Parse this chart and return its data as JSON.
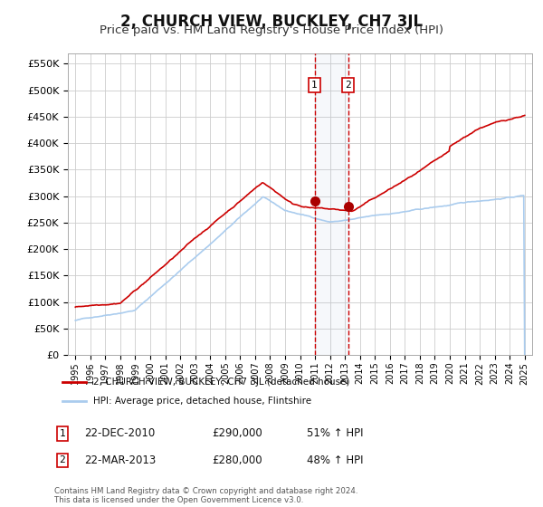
{
  "title": "2, CHURCH VIEW, BUCKLEY, CH7 3JL",
  "subtitle": "Price paid vs. HM Land Registry's House Price Index (HPI)",
  "title_fontsize": 12,
  "subtitle_fontsize": 9.5,
  "background_color": "#ffffff",
  "grid_color": "#cccccc",
  "hpi_line_color": "#aaccee",
  "price_line_color": "#cc0000",
  "sale1_date": 2010.97,
  "sale2_date": 2013.22,
  "sale1_price": 290000,
  "sale2_price": 280000,
  "sale1_label": "1",
  "sale2_label": "2",
  "sale1_text": "22-DEC-2010",
  "sale2_text": "22-MAR-2013",
  "sale1_hpi": "51% ↑ HPI",
  "sale2_hpi": "48% ↑ HPI",
  "legend_line1": "2, CHURCH VIEW, BUCKLEY, CH7 3JL (detached house)",
  "legend_line2": "HPI: Average price, detached house, Flintshire",
  "footer": "Contains HM Land Registry data © Crown copyright and database right 2024.\nThis data is licensed under the Open Government Licence v3.0.",
  "ylim": [
    0,
    570000
  ],
  "yticks": [
    0,
    50000,
    100000,
    150000,
    200000,
    250000,
    300000,
    350000,
    400000,
    450000,
    500000,
    550000
  ],
  "xlim_start": 1994.5,
  "xlim_end": 2025.5,
  "xticks": [
    1995,
    1996,
    1997,
    1998,
    1999,
    2000,
    2001,
    2002,
    2003,
    2004,
    2005,
    2006,
    2007,
    2008,
    2009,
    2010,
    2011,
    2012,
    2013,
    2014,
    2015,
    2016,
    2017,
    2018,
    2019,
    2020,
    2021,
    2022,
    2023,
    2024,
    2025
  ]
}
